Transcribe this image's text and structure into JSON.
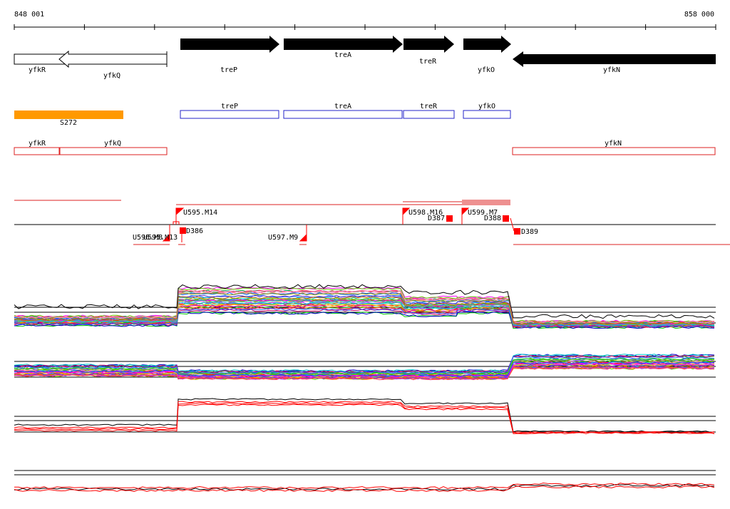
{
  "coordinates": {
    "start_label": "848 001",
    "end_label": "858 000"
  },
  "colors": {
    "gene_fill": "#000000",
    "gene_outline": "#000000",
    "operon_cds": "#2323c8",
    "operon_other": "#dd2222",
    "promoter": "#ff9900",
    "marks": "#ff0000",
    "track_line": "#000000"
  },
  "genes": [
    {
      "name": "yfkR",
      "strand": "-",
      "style": "outline"
    },
    {
      "name": "yfkQ",
      "strand": "-",
      "style": "outline"
    },
    {
      "name": "treP",
      "strand": "+",
      "style": "filled"
    },
    {
      "name": "treA",
      "strand": "+",
      "style": "filled"
    },
    {
      "name": "treR",
      "strand": "+",
      "style": "filled"
    },
    {
      "name": "yfkO",
      "strand": "+",
      "style": "filled"
    },
    {
      "name": "yfkN",
      "strand": "-",
      "style": "filled"
    }
  ],
  "promoter_label": "S272",
  "blue_boxes": [
    "treP",
    "treA",
    "treR",
    "yfkO"
  ],
  "red_boxes": [
    "yfkR",
    "yfkQ",
    "yfkN"
  ],
  "upshift_labels": [
    "U595.M14",
    "U598.M16",
    "U599.M7"
  ],
  "downshift_labels": [
    "U596.M8",
    "U595.M13",
    "U597.M9"
  ],
  "terminator_labels": [
    "D386",
    "D387",
    "D388",
    "D389"
  ]
}
